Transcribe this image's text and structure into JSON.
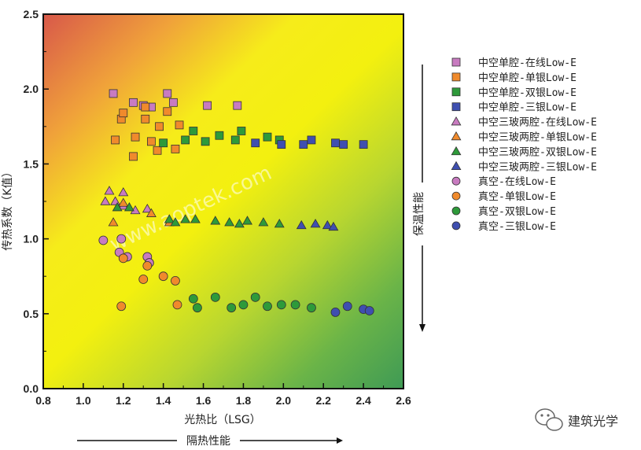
{
  "chart_data": {
    "type": "scatter",
    "title": "",
    "xlabel": "光热比（LSG）",
    "ylabel": "传热系数（K值）",
    "xlim": [
      0.8,
      2.6
    ],
    "ylim": [
      0.0,
      2.5
    ],
    "x_ticks": [
      "0.8",
      "1.0",
      "1.2",
      "1.4",
      "1.6",
      "1.8",
      "2.0",
      "2.2",
      "2.4",
      "2.6"
    ],
    "y_ticks": [
      "0.0",
      "0.5",
      "1.0",
      "1.5",
      "2.0",
      "2.5"
    ],
    "right_arrow_label": "保温性能",
    "bottom_arrow_label": "隔热性能",
    "legend_position": "right",
    "series": [
      {
        "name": "中空单腔-在线Low-E",
        "marker": "square",
        "color": "#c87bc0",
        "points": [
          [
            1.15,
            1.97
          ],
          [
            1.25,
            1.91
          ],
          [
            1.3,
            1.89
          ],
          [
            1.34,
            1.88
          ],
          [
            1.42,
            1.97
          ],
          [
            1.45,
            1.91
          ],
          [
            1.62,
            1.89
          ],
          [
            1.77,
            1.89
          ]
        ]
      },
      {
        "name": "中空单腔-单银Low-E",
        "marker": "square",
        "color": "#f08a2c",
        "points": [
          [
            1.16,
            1.66
          ],
          [
            1.19,
            1.8
          ],
          [
            1.2,
            1.84
          ],
          [
            1.25,
            1.55
          ],
          [
            1.26,
            1.68
          ],
          [
            1.31,
            1.8
          ],
          [
            1.31,
            1.88
          ],
          [
            1.34,
            1.65
          ],
          [
            1.38,
            1.75
          ],
          [
            1.37,
            1.59
          ],
          [
            1.42,
            1.85
          ],
          [
            1.46,
            1.6
          ],
          [
            1.48,
            1.76
          ]
        ]
      },
      {
        "name": "中空单腔-双银Low-E",
        "marker": "square",
        "color": "#2e9a3a",
        "points": [
          [
            1.4,
            1.64
          ],
          [
            1.51,
            1.66
          ],
          [
            1.55,
            1.72
          ],
          [
            1.61,
            1.65
          ],
          [
            1.68,
            1.69
          ],
          [
            1.76,
            1.66
          ],
          [
            1.79,
            1.72
          ],
          [
            1.92,
            1.68
          ],
          [
            1.98,
            1.66
          ]
        ]
      },
      {
        "name": "中空单腔-三银Low-E",
        "marker": "square",
        "color": "#3f4fb0",
        "points": [
          [
            1.86,
            1.64
          ],
          [
            1.99,
            1.63
          ],
          [
            2.1,
            1.63
          ],
          [
            2.14,
            1.66
          ],
          [
            2.26,
            1.64
          ],
          [
            2.3,
            1.63
          ],
          [
            2.4,
            1.63
          ]
        ]
      },
      {
        "name": "中空三玻两腔-在线Low-E",
        "marker": "triangle",
        "color": "#c87bc0",
        "points": [
          [
            1.11,
            1.25
          ],
          [
            1.13,
            1.32
          ],
          [
            1.16,
            1.25
          ],
          [
            1.2,
            1.31
          ],
          [
            1.2,
            1.22
          ],
          [
            1.26,
            1.19
          ],
          [
            1.32,
            1.2
          ]
        ]
      },
      {
        "name": "中空三玻两腔-单银Low-E",
        "marker": "triangle",
        "color": "#f08a2c",
        "points": [
          [
            1.15,
            1.11
          ],
          [
            1.2,
            1.24
          ],
          [
            1.34,
            1.17
          ],
          [
            1.43,
            1.11
          ]
        ]
      },
      {
        "name": "中空三玻两腔-双银Low-E",
        "marker": "triangle",
        "color": "#2e9a3a",
        "points": [
          [
            1.17,
            1.21
          ],
          [
            1.23,
            1.21
          ],
          [
            1.43,
            1.13
          ],
          [
            1.46,
            1.11
          ],
          [
            1.51,
            1.13
          ],
          [
            1.56,
            1.13
          ],
          [
            1.66,
            1.12
          ],
          [
            1.73,
            1.11
          ],
          [
            1.78,
            1.1
          ],
          [
            1.82,
            1.12
          ],
          [
            1.9,
            1.11
          ],
          [
            1.98,
            1.1
          ]
        ]
      },
      {
        "name": "中空三玻两腔-三银Low-E",
        "marker": "triangle",
        "color": "#3f4fb0",
        "points": [
          [
            2.09,
            1.09
          ],
          [
            2.16,
            1.1
          ],
          [
            2.22,
            1.09
          ],
          [
            2.25,
            1.08
          ]
        ]
      },
      {
        "name": "真空-在线Low-E",
        "marker": "circle",
        "color": "#c87bc0",
        "points": [
          [
            1.1,
            0.99
          ],
          [
            1.18,
            0.91
          ],
          [
            1.19,
            1.0
          ],
          [
            1.22,
            0.88
          ],
          [
            1.32,
            0.88
          ],
          [
            1.33,
            0.84
          ]
        ]
      },
      {
        "name": "真空-单银Low-E",
        "marker": "circle",
        "color": "#f08a2c",
        "points": [
          [
            1.19,
            0.55
          ],
          [
            1.2,
            0.87
          ],
          [
            1.3,
            0.73
          ],
          [
            1.32,
            0.82
          ],
          [
            1.4,
            0.75
          ],
          [
            1.46,
            0.72
          ],
          [
            1.47,
            0.56
          ]
        ]
      },
      {
        "name": "真空-双银Low-E",
        "marker": "circle",
        "color": "#2e9a3a",
        "points": [
          [
            1.55,
            0.6
          ],
          [
            1.57,
            0.54
          ],
          [
            1.66,
            0.61
          ],
          [
            1.74,
            0.54
          ],
          [
            1.8,
            0.56
          ],
          [
            1.86,
            0.61
          ],
          [
            1.92,
            0.55
          ],
          [
            1.99,
            0.56
          ],
          [
            2.06,
            0.56
          ],
          [
            2.14,
            0.54
          ]
        ]
      },
      {
        "name": "真空-三银Low-E",
        "marker": "circle",
        "color": "#3f4fb0",
        "points": [
          [
            2.26,
            0.51
          ],
          [
            2.32,
            0.55
          ],
          [
            2.4,
            0.53
          ],
          [
            2.43,
            0.52
          ]
        ]
      }
    ]
  },
  "watermark": "www.aoptek.com",
  "brand": {
    "name": "建筑光学",
    "icon": "wechat-icon"
  }
}
